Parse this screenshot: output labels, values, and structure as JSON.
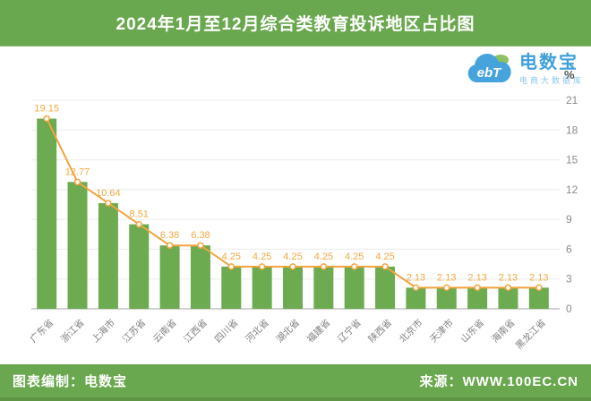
{
  "header": {
    "title": "2024年1月至12月综合类教育投诉地区占比图"
  },
  "logo": {
    "cloud_text": "ebT",
    "brand": "电数宝",
    "subtitle": "电商大数据库"
  },
  "footer": {
    "left": "图表编制：电数宝",
    "right": "来源：WWW.100EC.CN"
  },
  "colors": {
    "banner_green": "#6aa84f",
    "banner_green_dark": "#5e9542",
    "bar_green": "#6cab50",
    "line_orange": "#f0a43e",
    "value_label_orange": "#f5a942",
    "grid_gray": "#ebebeb",
    "axis_line_gray": "#a6a6a6",
    "axis_text_gray": "#8c8c8c",
    "x_label_gray": "#808080",
    "unit_label_gray": "#555555",
    "logo_blue": "#3f9fd9"
  },
  "chart_data": {
    "type": "bar",
    "title": "2024年1月至12月综合类教育投诉地区占比图",
    "categories": [
      "广东省",
      "浙江省",
      "上海市",
      "江苏省",
      "云南省",
      "江西省",
      "四川省",
      "河北省",
      "湖北省",
      "福建省",
      "辽宁省",
      "陕西省",
      "北京市",
      "天津市",
      "山东省",
      "海南省",
      "黑龙江省"
    ],
    "series": [
      {
        "name": "占比",
        "type": "bar",
        "values": [
          19.15,
          12.77,
          10.64,
          8.51,
          6.38,
          6.38,
          4.25,
          4.25,
          4.25,
          4.25,
          4.25,
          4.25,
          2.13,
          2.13,
          2.13,
          2.13,
          2.13
        ]
      },
      {
        "name": "占比",
        "type": "line",
        "values": [
          19.15,
          12.77,
          10.64,
          8.51,
          6.38,
          6.38,
          4.25,
          4.25,
          4.25,
          4.25,
          4.25,
          4.25,
          2.13,
          2.13,
          2.13,
          2.13,
          2.13
        ]
      }
    ],
    "unit": "%",
    "ylabel": "%",
    "xlabel": "",
    "ylim": [
      0,
      21
    ],
    "yticks": [
      0,
      3,
      6,
      9,
      12,
      15,
      18,
      21
    ],
    "grid": true,
    "legend": false,
    "value_labels": true,
    "x_label_rotation": -45
  }
}
